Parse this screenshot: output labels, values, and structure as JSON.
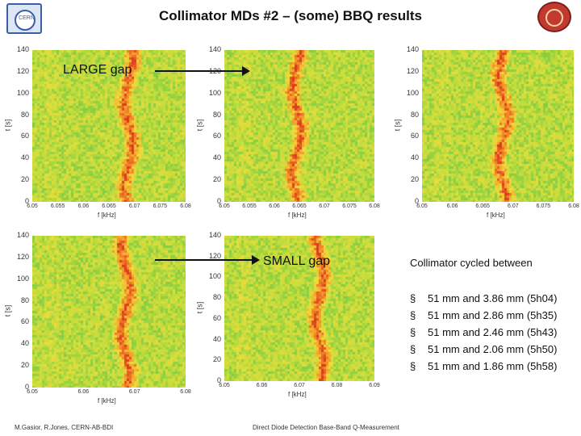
{
  "header": {
    "title": "Collimator MDs #2 – (some) BBQ results",
    "left_logo_text": "CERN"
  },
  "plots": [
    {
      "y_ticks": [
        "140",
        "120",
        "100",
        "80",
        "60",
        "40",
        "20",
        "0"
      ],
      "y_label": "t [s]",
      "x_ticks": [
        "6.05",
        "6.055",
        "6.06",
        "6.065",
        "6.07",
        "6.075",
        "6.08"
      ],
      "x_label": "f [kHz]"
    },
    {
      "y_ticks": [
        "140",
        "120",
        "100",
        "80",
        "60",
        "40",
        "20",
        "0"
      ],
      "y_label": "t [s]",
      "x_ticks": [
        "6.05",
        "6.055",
        "6.06",
        "6.065",
        "6.07",
        "6.075",
        "6.08"
      ],
      "x_label": "f [kHz]"
    },
    {
      "y_ticks": [
        "140",
        "120",
        "100",
        "80",
        "60",
        "40",
        "20",
        "0"
      ],
      "y_label": "t [s]",
      "x_ticks": [
        "6.05",
        "6.06",
        "6.065",
        "6.07",
        "6.075",
        "6.08"
      ],
      "x_label": "f [kHz]"
    },
    {
      "y_ticks": [
        "140",
        "120",
        "100",
        "80",
        "60",
        "40",
        "20",
        "0"
      ],
      "y_label": "t [s]",
      "x_ticks": [
        "6.05",
        "6.06",
        "6.07",
        "6.08"
      ],
      "x_label": "f [kHz]"
    },
    {
      "y_ticks": [
        "140",
        "120",
        "100",
        "80",
        "60",
        "40",
        "20",
        "0"
      ],
      "y_label": "t [s]",
      "x_ticks": [
        "6.05",
        "6.06",
        "6.07",
        "6.08",
        "6.09"
      ],
      "x_label": "f [kHz]"
    }
  ],
  "annotations": {
    "large_gap": "LARGE gap",
    "small_gap": "SMALL gap"
  },
  "cycle": {
    "heading": "Collimator cycled between",
    "items": [
      "51 mm and 3.86 mm (5h04)",
      "51 mm and 2.86 mm (5h35)",
      "51 mm and 2.46 mm (5h43)",
      "51 mm and 2.06 mm (5h50)",
      "51 mm and 1.86 mm (5h58)"
    ]
  },
  "footer": {
    "left": "M.Gasior, R.Jones, CERN-AB-BDI",
    "center": "Direct Diode Detection Base-Band Q-Measurement"
  }
}
